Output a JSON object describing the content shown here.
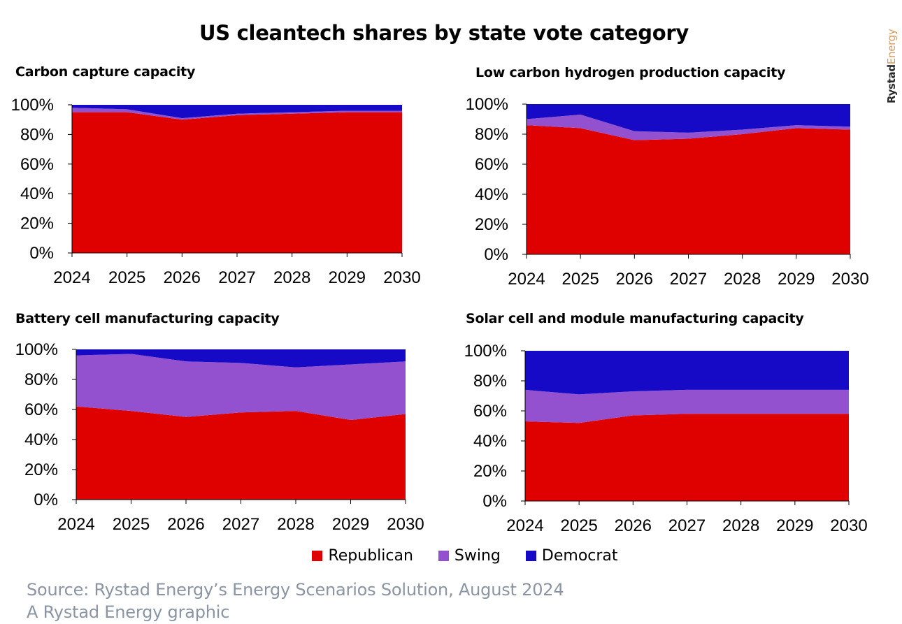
{
  "title": "US cleantech shares by state vote category",
  "brand": {
    "part1": "Rystad",
    "part2": "Energy"
  },
  "colors": {
    "republican": "#df0000",
    "swing": "#9351cf",
    "democrat": "#160ac6",
    "axis": "#000000",
    "footer": "#8a94a3"
  },
  "legend": [
    {
      "label": "Republican",
      "color": "#df0000"
    },
    {
      "label": "Swing",
      "color": "#9351cf"
    },
    {
      "label": "Democrat",
      "color": "#160ac6"
    }
  ],
  "footer": {
    "source": "Source: Rystad Energy’s Energy Scenarios Solution, August 2024",
    "credit": "A Rystad Energy graphic"
  },
  "chart_data": [
    {
      "type": "area",
      "stacked": true,
      "title": "Carbon capture capacity",
      "x": [
        "2024",
        "2025",
        "2026",
        "2027",
        "2028",
        "2029",
        "2030"
      ],
      "ylim": [
        0,
        100
      ],
      "yticks": [
        "0%",
        "20%",
        "40%",
        "60%",
        "80%",
        "100%"
      ],
      "series": [
        {
          "name": "Republican",
          "values": [
            95,
            95,
            90,
            93,
            94,
            95,
            95
          ]
        },
        {
          "name": "Swing",
          "values": [
            3,
            2,
            1,
            1,
            1,
            1,
            1
          ]
        },
        {
          "name": "Democrat",
          "values": [
            2,
            3,
            9,
            6,
            5,
            4,
            4
          ]
        }
      ]
    },
    {
      "type": "area",
      "stacked": true,
      "title": "Low carbon hydrogen production capacity",
      "x": [
        "2024",
        "2025",
        "2026",
        "2027",
        "2028",
        "2029",
        "2030"
      ],
      "ylim": [
        0,
        100
      ],
      "yticks": [
        "0%",
        "20%",
        "40%",
        "60%",
        "80%",
        "100%"
      ],
      "series": [
        {
          "name": "Republican",
          "values": [
            86,
            84,
            76,
            77,
            80,
            84,
            83
          ]
        },
        {
          "name": "Swing",
          "values": [
            4,
            9,
            6,
            4,
            3,
            2,
            2
          ]
        },
        {
          "name": "Democrat",
          "values": [
            10,
            7,
            18,
            19,
            17,
            14,
            15
          ]
        }
      ]
    },
    {
      "type": "area",
      "stacked": true,
      "title": "Battery cell manufacturing capacity",
      "x": [
        "2024",
        "2025",
        "2026",
        "2027",
        "2028",
        "2029",
        "2030"
      ],
      "ylim": [
        0,
        100
      ],
      "yticks": [
        "0%",
        "20%",
        "40%",
        "60%",
        "80%",
        "100%"
      ],
      "series": [
        {
          "name": "Republican",
          "values": [
            62,
            59,
            55,
            58,
            59,
            53,
            57
          ]
        },
        {
          "name": "Swing",
          "values": [
            34,
            38,
            37,
            33,
            29,
            37,
            35
          ]
        },
        {
          "name": "Democrat",
          "values": [
            4,
            3,
            8,
            9,
            12,
            10,
            8
          ]
        }
      ]
    },
    {
      "type": "area",
      "stacked": true,
      "title": "Solar cell and module manufacturing capacity",
      "x": [
        "2024",
        "2025",
        "2026",
        "2027",
        "2028",
        "2029",
        "2030"
      ],
      "ylim": [
        0,
        100
      ],
      "yticks": [
        "0%",
        "20%",
        "40%",
        "60%",
        "80%",
        "100%"
      ],
      "series": [
        {
          "name": "Republican",
          "values": [
            53,
            52,
            57,
            58,
            58,
            58,
            58
          ]
        },
        {
          "name": "Swing",
          "values": [
            21,
            19,
            16,
            16,
            16,
            16,
            16
          ]
        },
        {
          "name": "Democrat",
          "values": [
            26,
            29,
            27,
            26,
            26,
            26,
            26
          ]
        }
      ]
    }
  ]
}
